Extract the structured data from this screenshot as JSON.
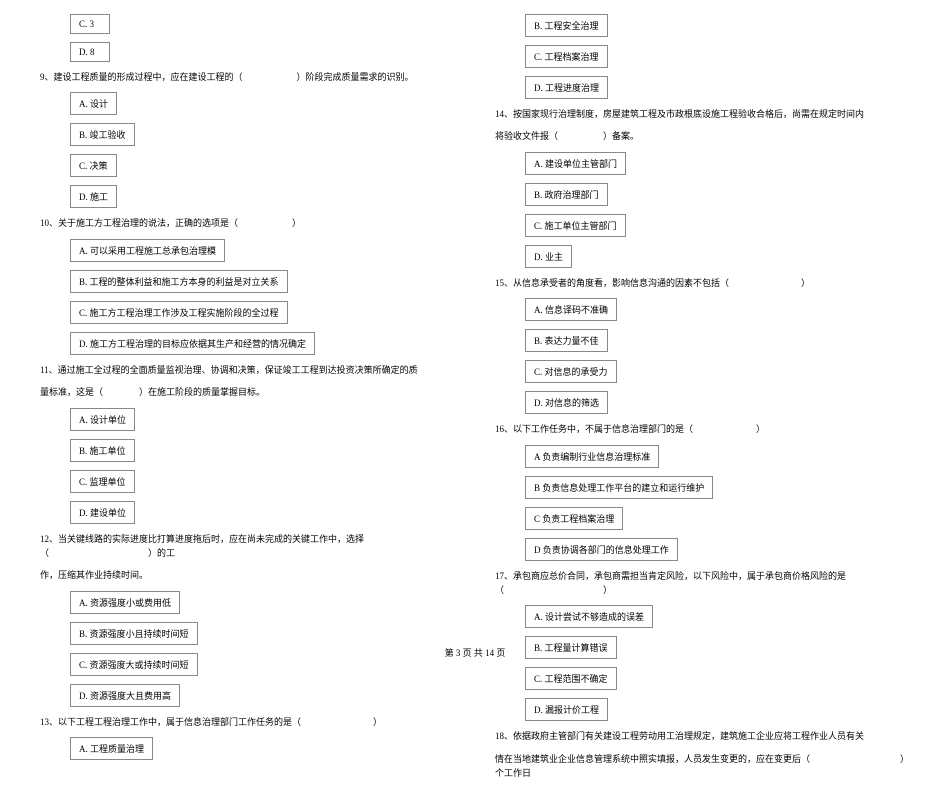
{
  "left": {
    "opt_c3": "C. 3",
    "opt_d8": "D. 8",
    "q9": "9、建设工程质量的形成过程中，应在建设工程的（　　　　　　）阶段完成质量需求的识别。",
    "q9_a": "A. 设计",
    "q9_b": "B. 竣工验收",
    "q9_c": "C. 决策",
    "q9_d": "D. 施工",
    "q10": "10、关于施工方工程治理的说法，正确的选项是（　　　　　　）",
    "q10_a": "A. 可以采用工程施工总承包治理模",
    "q10_b": "B. 工程的整体利益和施工方本身的利益是对立关系",
    "q10_c": "C. 施工方工程治理工作涉及工程实施阶段的全过程",
    "q10_d": "D. 施工方工程治理的目标应依据其生产和经营的情况确定",
    "q11": "11、通过施工全过程的全面质量监视治理、协调和决策，保证竣工工程到达投资决策所确定的质",
    "q11b": "量标准，这是（　　　　）在施工阶段的质量掌握目标。",
    "q11_a": "A. 设计单位",
    "q11_b": "B. 施工单位",
    "q11_c": "C. 监理单位",
    "q11_d": "D. 建设单位",
    "q12": "12、当关键线路的实际进度比打算进度拖后时，应在尚未完成的关键工作中，选择（　　　　　　　　　　　）的工",
    "q12b": "作，压缩其作业持续时间。",
    "q12_a": "A. 资源强度小或费用低",
    "q12_b": "B. 资源强度小且持续时间短",
    "q12_c": "C. 资源强度大或持续时间短",
    "q12_d": "D. 资源强度大且费用高",
    "q13": "13、以下工程工程治理工作中，属于信息治理部门工作任务的是（　　　　　　　　）",
    "q13_a": "A. 工程质量治理"
  },
  "right": {
    "opt_b": "B. 工程安全治理",
    "opt_c": "C. 工程档案治理",
    "opt_d": "D. 工程进度治理",
    "q14": "14、按国家现行治理制度，房屋建筑工程及市政根底设施工程验收合格后，尚需在规定时间内",
    "q14b": "将验收文件报（　　　　　）备案。",
    "q14_a": "A. 建设单位主管部门",
    "q14_b": "B. 政府治理部门",
    "q14_c": "C. 施工单位主管部门",
    "q14_d": "D. 业主",
    "q15": "15、从信息承受者的角度看，影响信息沟通的因素不包括（　　　　　　　　）",
    "q15_a": "A. 信息译码不准确",
    "q15_b": "B. 表达力量不佳",
    "q15_c": "C. 对信息的承受力",
    "q15_d": "D. 对信息的筛选",
    "q16": "16、以下工作任务中，不属于信息治理部门的是（　　　　　　　）",
    "q16_a": "A  负责编制行业信息治理标准",
    "q16_b": "B  负责信息处理工作平台的建立和运行维护",
    "q16_c": "C  负责工程档案治理",
    "q16_d": "D  负责协调各部门的信息处理工作",
    "q17": "17、承包商应总价合同，承包商需担当肯定风险，以下风险中，属于承包商价格风险的是（　　　　　　　　　　　）",
    "q17_a": "A. 设计尝试不够造成的误差",
    "q17_b": "B. 工程量计算错误",
    "q17_c": "C. 工程范围不确定",
    "q17_d": "D. 漏报计价工程",
    "q18": "18、依据政府主管部门有关建设工程劳动用工治理规定，建筑施工企业应将工程作业人员有关",
    "q18b": "情在当地建筑业企业信息管理系统中照实填报，人员发生变更的，应在变更后（　　　　　　　　　　）个工作日"
  },
  "footer": "第 3 页 共 14 页"
}
